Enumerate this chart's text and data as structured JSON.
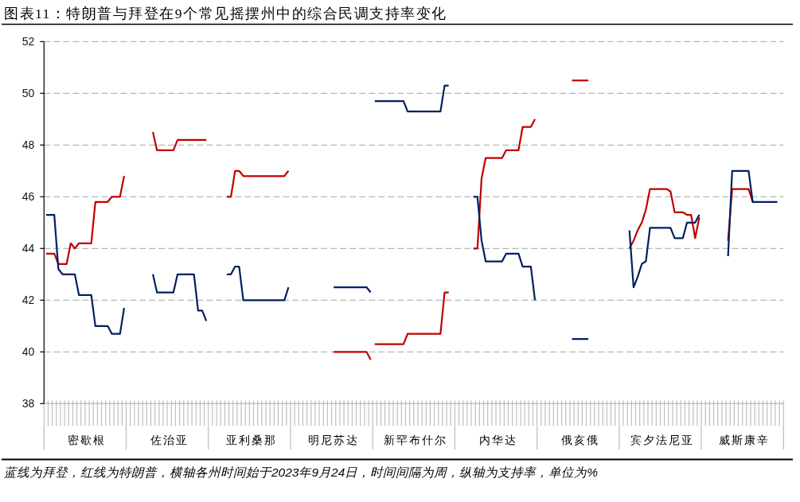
{
  "chart_data": {
    "type": "line",
    "title": "图表11：特朗普与拜登在9个常见摇摆州中的综合民调支持率变化",
    "annotations": [
      "蓝线为拜登，红线为特朗普，横轴各州时间始于2023年9月24日，时间间隔为周，纵轴为支持率，单位为%"
    ],
    "categories": [
      null,
      null,
      null,
      null,
      null,
      null,
      null,
      null,
      null,
      null,
      "密歇根",
      null,
      null,
      null,
      null,
      null,
      null,
      null,
      null,
      null,
      null,
      null,
      null,
      null,
      null,
      null,
      null,
      null,
      null,
      null,
      "佐治亚",
      null,
      null,
      null,
      null,
      null,
      null,
      null,
      null,
      null,
      null,
      null,
      null,
      null,
      null,
      null,
      null,
      null,
      null,
      null,
      "亚利桑那",
      null,
      null,
      null,
      null,
      null,
      null,
      null,
      null,
      null,
      null,
      null,
      null,
      null,
      null,
      null,
      null,
      null,
      null,
      null,
      "明尼苏达",
      null,
      null,
      null,
      null,
      null,
      null,
      null,
      null,
      null,
      null,
      null,
      null,
      null,
      null,
      null,
      null,
      null,
      null,
      null,
      "新罕布什尔",
      null,
      null,
      null,
      null,
      null,
      null,
      null,
      null,
      null,
      null,
      null,
      null,
      null,
      null,
      null,
      null,
      null,
      null,
      null,
      "内华达",
      null,
      null,
      null,
      null,
      null,
      null,
      null,
      null,
      null,
      null,
      null,
      null,
      null,
      null,
      null,
      null,
      null,
      null,
      null,
      "俄亥俄",
      null,
      null,
      null,
      null,
      null,
      null,
      null,
      null,
      null,
      null,
      null,
      null,
      null,
      null,
      null,
      null,
      null,
      null,
      null,
      "宾夕法尼亚",
      null,
      null,
      null,
      null,
      null,
      null,
      null,
      null,
      null,
      null,
      null,
      null,
      null,
      null,
      null,
      null,
      null,
      null,
      null,
      "威斯康辛",
      null,
      null,
      null,
      null,
      null,
      null,
      null,
      null,
      null
    ],
    "series": [
      {
        "color": "#c00000",
        "values": [
          43.8,
          43.8,
          43.8,
          43.4,
          43.4,
          43.4,
          44.2,
          44.0,
          44.2,
          44.2,
          44.2,
          44.2,
          45.8,
          45.8,
          45.8,
          45.8,
          46.0,
          46.0,
          46.0,
          46.8,
          null,
          null,
          null,
          null,
          null,
          null,
          48.5,
          47.8,
          47.8,
          47.8,
          47.8,
          47.8,
          48.2,
          48.2,
          48.2,
          48.2,
          48.2,
          48.2,
          48.2,
          48.2,
          null,
          null,
          null,
          null,
          46.0,
          46.0,
          47.0,
          47.0,
          46.8,
          46.8,
          46.8,
          46.8,
          46.8,
          46.8,
          46.8,
          46.8,
          46.8,
          46.8,
          46.8,
          47.0,
          null,
          null,
          null,
          null,
          null,
          null,
          null,
          null,
          null,
          null,
          40.0,
          40.0,
          40.0,
          40.0,
          40.0,
          40.0,
          40.0,
          40.0,
          40.0,
          39.7,
          null,
          null,
          null,
          null,
          null,
          null,
          null,
          null,
          null,
          null,
          null,
          null,
          null,
          null,
          null,
          null,
          null,
          null,
          null,
          null,
          null,
          null,
          null,
          null,
          44.0,
          44.0,
          46.7,
          47.5,
          47.5,
          47.5,
          47.5,
          47.5,
          47.8,
          47.8,
          47.8,
          47.8,
          48.7,
          48.7,
          48.7,
          49.0,
          null,
          null,
          null,
          null,
          null,
          null,
          null,
          null,
          50.5,
          50.5,
          50.5,
          50.5,
          50.5,
          null,
          null,
          null,
          null,
          null,
          null,
          null,
          null,
          null,
          44.0,
          44.3,
          44.7,
          45.0,
          45.5,
          46.3,
          46.3,
          46.3,
          46.3,
          46.3,
          46.2,
          45.4,
          45.4,
          45.4,
          45.3,
          45.3,
          44.4,
          45.2,
          null,
          null,
          null,
          null,
          null,
          null,
          44.3,
          46.3,
          46.3,
          46.3,
          46.3,
          46.3,
          45.8,
          null,
          null,
          null,
          null,
          null,
          null,
          null
        ]
      },
      {
        "color": "#c00000",
        "values": [
          null,
          null,
          null,
          null,
          null,
          null,
          null,
          null,
          null,
          null,
          null,
          null,
          null,
          null,
          null,
          null,
          null,
          null,
          null,
          null,
          null,
          null,
          null,
          null,
          null,
          null,
          null,
          null,
          null,
          null,
          null,
          null,
          null,
          null,
          null,
          null,
          null,
          null,
          null,
          null,
          null,
          null,
          null,
          null,
          null,
          null,
          null,
          null,
          null,
          null,
          null,
          null,
          null,
          null,
          null,
          null,
          null,
          null,
          null,
          null,
          null,
          null,
          null,
          null,
          null,
          null,
          null,
          null,
          null,
          null,
          null,
          null,
          null,
          null,
          null,
          null,
          null,
          null,
          null,
          null,
          40.3,
          40.3,
          40.3,
          40.3,
          40.3,
          40.3,
          40.3,
          40.3,
          40.7,
          40.7,
          40.7,
          40.7,
          40.7,
          40.7,
          40.7,
          40.7,
          40.7,
          42.3,
          42.3,
          null,
          null,
          null,
          null,
          null,
          null,
          null,
          null,
          null,
          null,
          null,
          null,
          null,
          null,
          null,
          null,
          null,
          null,
          null,
          null,
          null,
          null,
          null,
          null,
          null,
          null,
          null,
          null,
          null,
          null,
          null,
          null,
          null,
          null,
          null,
          null,
          null,
          null,
          null,
          null,
          null,
          null,
          null,
          null,
          null,
          null,
          null,
          null,
          null,
          null,
          null,
          null,
          null,
          null,
          null,
          null,
          null,
          null,
          null,
          null,
          null,
          null,
          null,
          null,
          null,
          null,
          null,
          null,
          null,
          null,
          null,
          null,
          null,
          null,
          null,
          null,
          null,
          null,
          null,
          null,
          null
        ]
      },
      {
        "color": "#002060",
        "values": [
          45.3,
          45.3,
          45.3,
          43.2,
          43.0,
          43.0,
          43.0,
          43.0,
          42.2,
          42.2,
          42.2,
          42.2,
          41.0,
          41.0,
          41.0,
          41.0,
          40.7,
          40.7,
          40.7,
          41.7,
          null,
          null,
          null,
          null,
          null,
          null,
          43.0,
          42.3,
          42.3,
          42.3,
          42.3,
          42.3,
          43.0,
          43.0,
          43.0,
          43.0,
          43.0,
          41.6,
          41.6,
          41.2,
          null,
          null,
          null,
          null,
          43.0,
          43.0,
          43.3,
          43.3,
          42.0,
          42.0,
          42.0,
          42.0,
          42.0,
          42.0,
          42.0,
          42.0,
          42.0,
          42.0,
          42.0,
          42.5,
          null,
          null,
          null,
          null,
          null,
          null,
          null,
          null,
          null,
          null,
          42.5,
          42.5,
          42.5,
          42.5,
          42.5,
          42.5,
          42.5,
          42.5,
          42.5,
          42.3,
          null,
          null,
          null,
          null,
          null,
          null,
          null,
          null,
          null,
          null,
          null,
          null,
          null,
          null,
          null,
          null,
          null,
          null,
          null,
          null,
          null,
          null,
          null,
          null,
          46.0,
          46.0,
          44.3,
          43.5,
          43.5,
          43.5,
          43.5,
          43.5,
          43.8,
          43.8,
          43.8,
          43.8,
          43.3,
          43.3,
          43.3,
          42.0,
          null,
          null,
          null,
          null,
          null,
          null,
          null,
          null,
          40.5,
          40.5,
          40.5,
          40.5,
          40.5,
          null,
          null,
          null,
          null,
          null,
          null,
          null,
          null,
          null,
          44.7,
          42.5,
          42.9,
          43.4,
          43.5,
          44.8,
          44.8,
          44.8,
          44.8,
          44.8,
          44.8,
          44.4,
          44.4,
          44.4,
          45.0,
          45.0,
          45.0,
          45.3,
          null,
          null,
          null,
          null,
          null,
          null,
          43.7,
          47.0,
          47.0,
          47.0,
          47.0,
          47.0,
          45.8,
          45.8,
          45.8,
          45.8,
          45.8,
          45.8,
          45.8,
          null
        ]
      },
      {
        "color": "#002060",
        "values": [
          null,
          null,
          null,
          null,
          null,
          null,
          null,
          null,
          null,
          null,
          null,
          null,
          null,
          null,
          null,
          null,
          null,
          null,
          null,
          null,
          null,
          null,
          null,
          null,
          null,
          null,
          null,
          null,
          null,
          null,
          null,
          null,
          null,
          null,
          null,
          null,
          null,
          null,
          null,
          null,
          null,
          null,
          null,
          null,
          null,
          null,
          null,
          null,
          null,
          null,
          null,
          null,
          null,
          null,
          null,
          null,
          null,
          null,
          null,
          null,
          null,
          null,
          null,
          null,
          null,
          null,
          null,
          null,
          null,
          null,
          null,
          null,
          null,
          null,
          null,
          null,
          null,
          null,
          null,
          null,
          49.7,
          49.7,
          49.7,
          49.7,
          49.7,
          49.7,
          49.7,
          49.7,
          49.3,
          49.3,
          49.3,
          49.3,
          49.3,
          49.3,
          49.3,
          49.3,
          49.3,
          50.3,
          50.3,
          null,
          null,
          null,
          null,
          null,
          null,
          null,
          null,
          null,
          null,
          null,
          null,
          null,
          null,
          null,
          null,
          null,
          null,
          null,
          null,
          null,
          null,
          null,
          null,
          null,
          null,
          null,
          null,
          null,
          null,
          null,
          null,
          null,
          null,
          null,
          null,
          null,
          null,
          null,
          null,
          null,
          null,
          null,
          null,
          null,
          null,
          null,
          null,
          null,
          null,
          null,
          null,
          null,
          null,
          null,
          null,
          null,
          null,
          null,
          null,
          null,
          null,
          null,
          null,
          null,
          null,
          null,
          null,
          null,
          null,
          null,
          null,
          null,
          null,
          null,
          null,
          null,
          null,
          null,
          null,
          null
        ]
      }
    ],
    "ylim": [
      38,
      52
    ],
    "yticks": [
      38,
      40,
      42,
      44,
      46,
      48,
      50,
      52
    ],
    "grid": "y"
  }
}
